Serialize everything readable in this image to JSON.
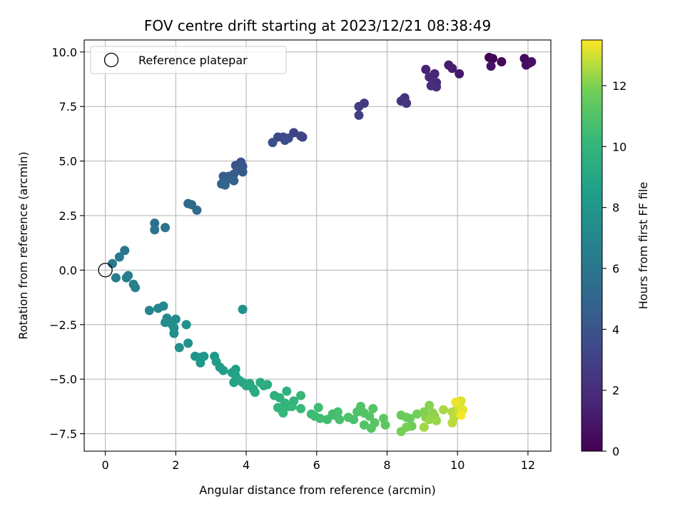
{
  "chart_data": {
    "type": "scatter",
    "title": "FOV centre drift starting at 2023/12/21 08:38:49",
    "xlabel": "Angular distance from reference (arcmin)",
    "ylabel": "Rotation from reference (arcmin)",
    "xlim": [
      -0.6,
      12.65
    ],
    "ylim": [
      -8.3,
      10.55
    ],
    "xticks": [
      0,
      2,
      4,
      6,
      8,
      10,
      12
    ],
    "xtick_labels": [
      "0",
      "2",
      "4",
      "6",
      "8",
      "10",
      "12"
    ],
    "yticks": [
      -7.5,
      -5.0,
      -2.5,
      0.0,
      2.5,
      5.0,
      7.5,
      10.0
    ],
    "ytick_labels": [
      "−7.5",
      "−5.0",
      "−2.5",
      "0.0",
      "2.5",
      "5.0",
      "7.5",
      "10.0"
    ],
    "grid": true,
    "legend": {
      "placement": "top-left",
      "entries": [
        "Reference platepar"
      ]
    },
    "reference_point": {
      "x": 0,
      "y": 0,
      "label": "Reference platepar"
    },
    "colorbar": {
      "label": "Hours from first FF file",
      "colormap": "viridis",
      "range": [
        0,
        13.5
      ],
      "ticks": [
        0,
        2,
        4,
        6,
        8,
        10,
        12
      ],
      "tick_labels": [
        "0",
        "2",
        "4",
        "6",
        "8",
        "10",
        "12"
      ]
    },
    "points": [
      {
        "x": 10.9,
        "y": 9.75,
        "h": 0.1
      },
      {
        "x": 11.0,
        "y": 9.7,
        "h": 0.2
      },
      {
        "x": 11.25,
        "y": 9.55,
        "h": 0.3
      },
      {
        "x": 11.9,
        "y": 9.7,
        "h": 0.4
      },
      {
        "x": 12.05,
        "y": 9.5,
        "h": 0.5
      },
      {
        "x": 11.95,
        "y": 9.4,
        "h": 0.6
      },
      {
        "x": 12.1,
        "y": 9.55,
        "h": 0.7
      },
      {
        "x": 10.95,
        "y": 9.35,
        "h": 0.8
      },
      {
        "x": 10.05,
        "y": 9.0,
        "h": 1.0
      },
      {
        "x": 9.75,
        "y": 9.4,
        "h": 1.2
      },
      {
        "x": 9.85,
        "y": 9.25,
        "h": 1.3
      },
      {
        "x": 9.1,
        "y": 9.2,
        "h": 1.5
      },
      {
        "x": 9.35,
        "y": 9.0,
        "h": 1.6
      },
      {
        "x": 9.2,
        "y": 8.85,
        "h": 1.7
      },
      {
        "x": 9.4,
        "y": 8.6,
        "h": 1.8
      },
      {
        "x": 9.25,
        "y": 8.45,
        "h": 1.9
      },
      {
        "x": 9.4,
        "y": 8.4,
        "h": 2.0
      },
      {
        "x": 8.5,
        "y": 7.9,
        "h": 2.2
      },
      {
        "x": 8.4,
        "y": 7.75,
        "h": 2.3
      },
      {
        "x": 8.55,
        "y": 7.65,
        "h": 2.4
      },
      {
        "x": 7.35,
        "y": 7.65,
        "h": 2.6
      },
      {
        "x": 7.2,
        "y": 7.5,
        "h": 2.7
      },
      {
        "x": 7.2,
        "y": 7.1,
        "h": 2.8
      },
      {
        "x": 5.35,
        "y": 6.3,
        "h": 3.0
      },
      {
        "x": 5.55,
        "y": 6.15,
        "h": 3.1
      },
      {
        "x": 5.6,
        "y": 6.1,
        "h": 3.2
      },
      {
        "x": 5.05,
        "y": 6.1,
        "h": 3.3
      },
      {
        "x": 4.9,
        "y": 6.1,
        "h": 3.4
      },
      {
        "x": 5.2,
        "y": 6.05,
        "h": 3.5
      },
      {
        "x": 5.1,
        "y": 5.95,
        "h": 3.6
      },
      {
        "x": 4.75,
        "y": 5.85,
        "h": 3.7
      },
      {
        "x": 3.85,
        "y": 4.95,
        "h": 3.9
      },
      {
        "x": 3.7,
        "y": 4.8,
        "h": 4.0
      },
      {
        "x": 3.9,
        "y": 4.75,
        "h": 4.1
      },
      {
        "x": 3.8,
        "y": 4.6,
        "h": 4.2
      },
      {
        "x": 3.9,
        "y": 4.5,
        "h": 4.3
      },
      {
        "x": 3.65,
        "y": 4.4,
        "h": 4.4
      },
      {
        "x": 3.5,
        "y": 4.3,
        "h": 4.5
      },
      {
        "x": 3.35,
        "y": 4.3,
        "h": 4.5
      },
      {
        "x": 3.45,
        "y": 4.15,
        "h": 4.6
      },
      {
        "x": 3.65,
        "y": 4.1,
        "h": 4.7
      },
      {
        "x": 3.3,
        "y": 3.95,
        "h": 4.8
      },
      {
        "x": 3.4,
        "y": 3.9,
        "h": 4.9
      },
      {
        "x": 2.35,
        "y": 3.05,
        "h": 5.1
      },
      {
        "x": 2.45,
        "y": 3.0,
        "h": 5.2
      },
      {
        "x": 2.6,
        "y": 2.75,
        "h": 5.3
      },
      {
        "x": 1.4,
        "y": 2.15,
        "h": 5.6
      },
      {
        "x": 1.7,
        "y": 1.95,
        "h": 5.7
      },
      {
        "x": 1.4,
        "y": 1.85,
        "h": 5.8
      },
      {
        "x": 0.55,
        "y": 0.9,
        "h": 6.0
      },
      {
        "x": 0.4,
        "y": 0.6,
        "h": 6.1
      },
      {
        "x": 0.2,
        "y": 0.3,
        "h": 6.2
      },
      {
        "x": 0.3,
        "y": -0.35,
        "h": 6.3
      },
      {
        "x": 0.65,
        "y": -0.25,
        "h": 6.4
      },
      {
        "x": 0.6,
        "y": -0.35,
        "h": 6.5
      },
      {
        "x": 0.8,
        "y": -0.65,
        "h": 6.6
      },
      {
        "x": 0.85,
        "y": -0.8,
        "h": 6.7
      },
      {
        "x": 1.25,
        "y": -1.85,
        "h": 6.9
      },
      {
        "x": 1.5,
        "y": -1.75,
        "h": 7.0
      },
      {
        "x": 1.65,
        "y": -1.65,
        "h": 7.1
      },
      {
        "x": 1.75,
        "y": -2.2,
        "h": 7.2
      },
      {
        "x": 1.7,
        "y": -2.4,
        "h": 7.3
      },
      {
        "x": 1.9,
        "y": -2.5,
        "h": 7.4
      },
      {
        "x": 2.0,
        "y": -2.25,
        "h": 7.4
      },
      {
        "x": 1.95,
        "y": -2.65,
        "h": 7.5
      },
      {
        "x": 1.95,
        "y": -2.9,
        "h": 7.6
      },
      {
        "x": 2.3,
        "y": -2.5,
        "h": 7.6
      },
      {
        "x": 2.1,
        "y": -3.55,
        "h": 7.7
      },
      {
        "x": 2.35,
        "y": -3.35,
        "h": 7.8
      },
      {
        "x": 3.9,
        "y": -1.8,
        "h": 7.7
      },
      {
        "x": 2.55,
        "y": -3.95,
        "h": 7.9
      },
      {
        "x": 2.7,
        "y": -4.0,
        "h": 8.0
      },
      {
        "x": 2.8,
        "y": -3.95,
        "h": 8.1
      },
      {
        "x": 2.7,
        "y": -4.25,
        "h": 8.1
      },
      {
        "x": 3.1,
        "y": -3.95,
        "h": 8.2
      },
      {
        "x": 3.15,
        "y": -4.2,
        "h": 8.3
      },
      {
        "x": 3.25,
        "y": -4.45,
        "h": 8.4
      },
      {
        "x": 3.35,
        "y": -4.6,
        "h": 8.5
      },
      {
        "x": 3.6,
        "y": -4.7,
        "h": 8.6
      },
      {
        "x": 3.7,
        "y": -4.55,
        "h": 8.6
      },
      {
        "x": 3.7,
        "y": -4.85,
        "h": 8.7
      },
      {
        "x": 3.65,
        "y": -5.15,
        "h": 8.8
      },
      {
        "x": 3.8,
        "y": -5.05,
        "h": 8.9
      },
      {
        "x": 3.9,
        "y": -5.15,
        "h": 9.0
      },
      {
        "x": 4.0,
        "y": -5.3,
        "h": 9.1
      },
      {
        "x": 4.1,
        "y": -5.2,
        "h": 9.1
      },
      {
        "x": 4.2,
        "y": -5.45,
        "h": 9.2
      },
      {
        "x": 4.25,
        "y": -5.6,
        "h": 9.3
      },
      {
        "x": 4.4,
        "y": -5.15,
        "h": 9.3
      },
      {
        "x": 4.5,
        "y": -5.3,
        "h": 9.4
      },
      {
        "x": 4.6,
        "y": -5.25,
        "h": 9.4
      },
      {
        "x": 4.8,
        "y": -5.75,
        "h": 9.6
      },
      {
        "x": 4.95,
        "y": -5.85,
        "h": 9.7
      },
      {
        "x": 5.15,
        "y": -5.55,
        "h": 9.7
      },
      {
        "x": 5.1,
        "y": -6.1,
        "h": 9.8
      },
      {
        "x": 5.2,
        "y": -6.25,
        "h": 9.9
      },
      {
        "x": 5.35,
        "y": -6.0,
        "h": 9.9
      },
      {
        "x": 5.0,
        "y": -6.4,
        "h": 10.0
      },
      {
        "x": 4.9,
        "y": -6.3,
        "h": 10.0
      },
      {
        "x": 5.05,
        "y": -6.55,
        "h": 10.1
      },
      {
        "x": 5.3,
        "y": -6.25,
        "h": 10.1
      },
      {
        "x": 5.55,
        "y": -6.35,
        "h": 10.2
      },
      {
        "x": 5.55,
        "y": -5.75,
        "h": 10.2
      },
      {
        "x": 5.85,
        "y": -6.6,
        "h": 10.3
      },
      {
        "x": 5.95,
        "y": -6.7,
        "h": 10.4
      },
      {
        "x": 6.05,
        "y": -6.3,
        "h": 10.4
      },
      {
        "x": 6.1,
        "y": -6.8,
        "h": 10.5
      },
      {
        "x": 6.3,
        "y": -6.85,
        "h": 10.5
      },
      {
        "x": 6.45,
        "y": -6.6,
        "h": 10.6
      },
      {
        "x": 6.5,
        "y": -6.65,
        "h": 10.6
      },
      {
        "x": 6.6,
        "y": -6.5,
        "h": 10.7
      },
      {
        "x": 6.65,
        "y": -6.85,
        "h": 10.7
      },
      {
        "x": 6.9,
        "y": -6.75,
        "h": 10.8
      },
      {
        "x": 7.05,
        "y": -6.85,
        "h": 10.8
      },
      {
        "x": 7.15,
        "y": -6.5,
        "h": 10.9
      },
      {
        "x": 7.25,
        "y": -6.25,
        "h": 10.9
      },
      {
        "x": 7.35,
        "y": -6.55,
        "h": 11.0
      },
      {
        "x": 7.35,
        "y": -7.1,
        "h": 11.0
      },
      {
        "x": 7.5,
        "y": -6.7,
        "h": 11.1
      },
      {
        "x": 7.6,
        "y": -6.35,
        "h": 11.1
      },
      {
        "x": 7.65,
        "y": -7.0,
        "h": 11.2
      },
      {
        "x": 7.55,
        "y": -7.25,
        "h": 11.2
      },
      {
        "x": 7.9,
        "y": -6.8,
        "h": 11.3
      },
      {
        "x": 7.95,
        "y": -7.1,
        "h": 11.3
      },
      {
        "x": 8.4,
        "y": -6.65,
        "h": 11.6
      },
      {
        "x": 8.55,
        "y": -6.75,
        "h": 11.7
      },
      {
        "x": 8.65,
        "y": -6.8,
        "h": 11.7
      },
      {
        "x": 8.7,
        "y": -7.15,
        "h": 11.8
      },
      {
        "x": 8.85,
        "y": -6.6,
        "h": 11.8
      },
      {
        "x": 8.4,
        "y": -7.4,
        "h": 11.9
      },
      {
        "x": 8.55,
        "y": -7.2,
        "h": 11.9
      },
      {
        "x": 9.05,
        "y": -6.5,
        "h": 12.0
      },
      {
        "x": 9.1,
        "y": -6.75,
        "h": 12.1
      },
      {
        "x": 9.2,
        "y": -6.2,
        "h": 12.1
      },
      {
        "x": 9.3,
        "y": -6.55,
        "h": 12.2
      },
      {
        "x": 9.35,
        "y": -6.7,
        "h": 12.2
      },
      {
        "x": 9.2,
        "y": -6.85,
        "h": 12.3
      },
      {
        "x": 9.4,
        "y": -6.9,
        "h": 12.3
      },
      {
        "x": 9.05,
        "y": -7.2,
        "h": 12.4
      },
      {
        "x": 9.6,
        "y": -6.4,
        "h": 12.5
      },
      {
        "x": 9.85,
        "y": -6.5,
        "h": 12.6
      },
      {
        "x": 9.9,
        "y": -6.75,
        "h": 12.7
      },
      {
        "x": 9.85,
        "y": -7.0,
        "h": 12.7
      },
      {
        "x": 10.0,
        "y": -6.55,
        "h": 12.8
      },
      {
        "x": 10.0,
        "y": -6.2,
        "h": 12.9
      },
      {
        "x": 10.05,
        "y": -6.3,
        "h": 13.0
      },
      {
        "x": 10.1,
        "y": -6.0,
        "h": 13.1
      },
      {
        "x": 10.15,
        "y": -6.4,
        "h": 13.2
      },
      {
        "x": 9.95,
        "y": -6.05,
        "h": 13.3
      },
      {
        "x": 10.1,
        "y": -6.65,
        "h": 13.4
      }
    ]
  }
}
